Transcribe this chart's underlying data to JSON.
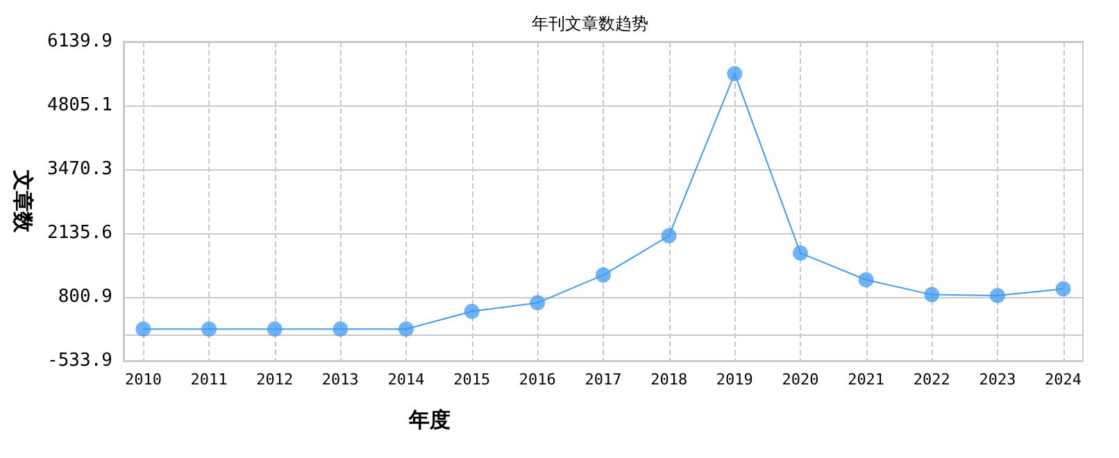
{
  "chart_data": {
    "type": "line",
    "title": "年刊文章数趋势",
    "xlabel": "年度",
    "ylabel": "文章数",
    "x": [
      2010,
      2011,
      2012,
      2013,
      2014,
      2015,
      2016,
      2017,
      2018,
      2019,
      2020,
      2021,
      2022,
      2023,
      2024
    ],
    "series": [
      {
        "color": "#3d9bf2",
        "values": [
          130,
          130,
          130,
          130,
          130,
          500,
          680,
          1260,
          2080,
          5470,
          1720,
          1160,
          850,
          830,
          970
        ]
      }
    ],
    "xlim": [
      2009.7,
      2024.3
    ],
    "xticks": [
      2010,
      2011,
      2012,
      2013,
      2014,
      2015,
      2016,
      2017,
      2018,
      2019,
      2020,
      2021,
      2022,
      2023,
      2024
    ],
    "ylim": [
      -533.9,
      6139.9
    ],
    "yticks": [
      -533.9,
      800.9,
      2135.6,
      3470.3,
      4805.1,
      6139.9
    ],
    "grid": true,
    "marker": "circle",
    "line_style": "solid"
  }
}
